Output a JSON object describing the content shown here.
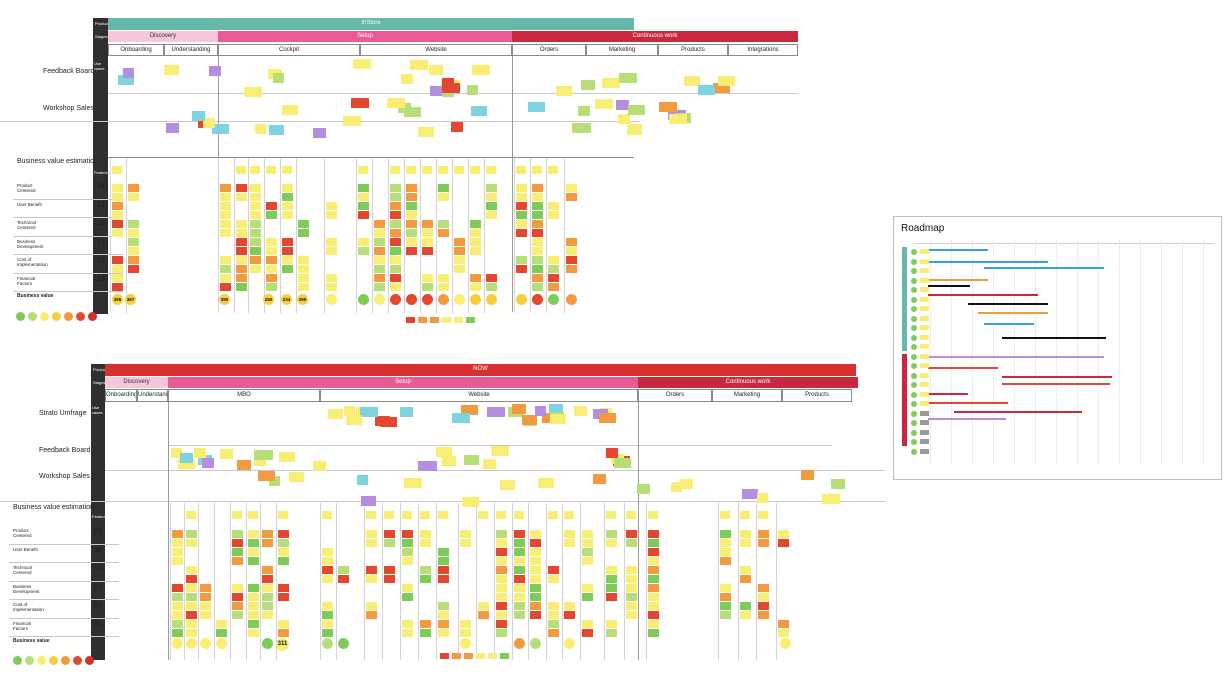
{
  "colors": {
    "teal": "#66b8a8",
    "pink": "#ea5b95",
    "red_dark": "#c9283e",
    "red_now": "#d92f2f",
    "light_pink": "#f6c6da",
    "rail": "#2f2f2f",
    "yellow": "#f8ee74",
    "orange": "#f29a3f",
    "red": "#e4472f",
    "green": "#7fcb5a",
    "lightgreen": "#b8de7a",
    "purple": "#b48ee0",
    "blue": "#3aa0d8",
    "cyan": "#7fd2e0",
    "grey": "#9a9a9a"
  },
  "top_board": {
    "rail_tags": [
      "Product",
      "Stages",
      "Use cases",
      "Features"
    ],
    "product_banner": "InStore",
    "stages": [
      "Discovery",
      "Setup",
      "Continuous work"
    ],
    "areas": [
      "Onboarding",
      "Understanding",
      "Cockpit",
      "Website",
      "Orders",
      "Marketing",
      "Products",
      "Integrations"
    ],
    "rows": [
      "Feedback Board",
      "Workshop Sales"
    ],
    "estimation_title": "Business value estimation",
    "criteria": [
      "Product Centered",
      "User Benefit",
      "Technical Centered",
      "Business Development",
      "Cost of Implementation",
      "Financial Factors"
    ],
    "weights": [
      "24",
      "32",
      "15",
      "13",
      "13",
      "23"
    ],
    "business_value_label": "Business value",
    "circle_values": [
      "385",
      "367",
      "380",
      "280",
      "234",
      "399"
    ]
  },
  "bottom_board": {
    "rail_tags": [
      "Product",
      "Stages",
      "Use cases",
      "Features"
    ],
    "product_banner": "NOW",
    "stages": [
      "Discovery",
      "Setup",
      "Continuous work"
    ],
    "areas": [
      "Onboarding",
      "Understanding",
      "MBO",
      "Website",
      "Orders",
      "Marketing",
      "Products"
    ],
    "rows": [
      "Strato Umfrage",
      "Feedback Board",
      "Workshop Sales"
    ],
    "estimation_title": "Business value estimation",
    "criteria": [
      "Product Centered",
      "User Benefit",
      "Technical Centered",
      "Business Development",
      "Cost of Implementation",
      "Financial Factors"
    ],
    "weights": [
      "24",
      "32",
      "15",
      "13",
      "13",
      "23"
    ],
    "business_value_label": "Business value",
    "circle_values": [
      "311"
    ]
  },
  "roadmap": {
    "title": "Roadmap"
  }
}
